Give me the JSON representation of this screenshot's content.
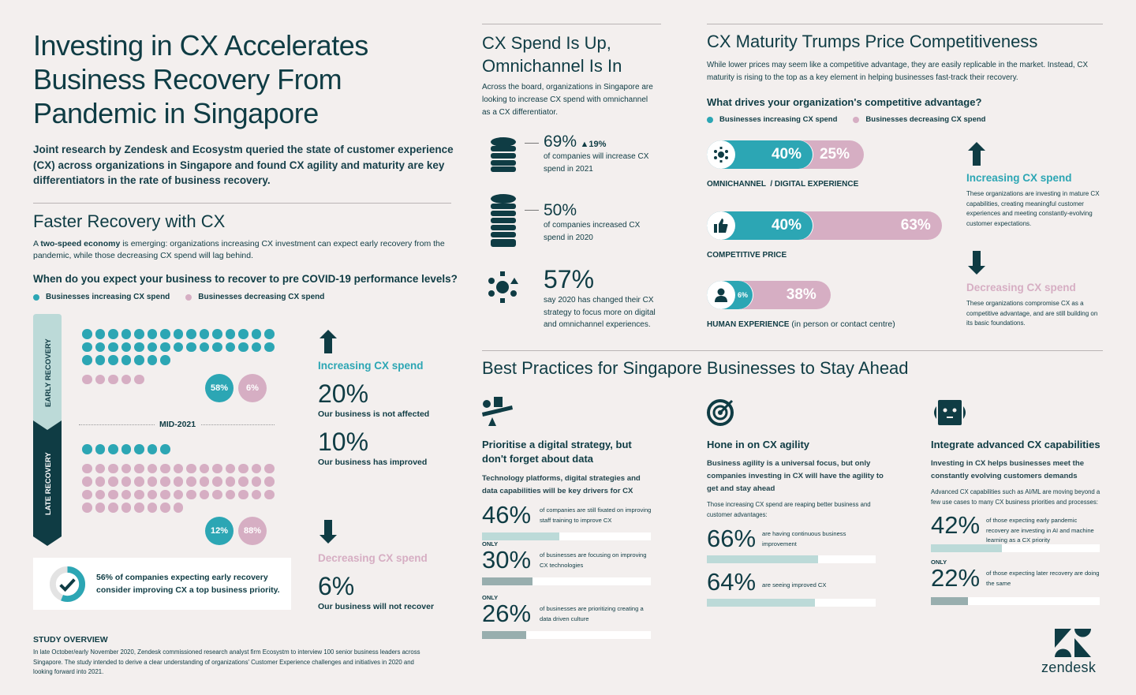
{
  "title": "Investing in CX Accelerates Business Recovery From Pandemic in Singapore",
  "intro": "Joint research by Zendesk and Ecosystm queried the state of customer experience (CX) across organizations in Singapore and found CX agility and maturity are key differentiators in the rate of business recovery.",
  "colors": {
    "dark": "#0f3c44",
    "teal": "#2ca6b4",
    "pink": "#d6aec3",
    "light": "#bcdad8",
    "grey": "#98aeae",
    "bg": "#f3efee"
  },
  "recovery": {
    "title": "Faster Recovery with CX",
    "para_bold": "two-speed economy",
    "para_pre": "A ",
    "para_post": " is emerging: organizations increasing CX investment can expect early recovery from the pandemic, while those decreasing CX spend will lag behind.",
    "question": "When do you expect your business to recover to pre COVID-19 performance levels?",
    "legend_inc": "Businesses increasing CX spend",
    "legend_dec": "Businesses decreasing CX spend",
    "early_label": "EARLY RECOVERY",
    "late_label": "LATE RECOVERY",
    "mid_label": "MID-2021",
    "early": {
      "teal_dots": 37,
      "pink_dots": 5,
      "teal_pct": "58%",
      "pink_pct": "6%"
    },
    "late": {
      "teal_dots": 7,
      "pink_dots": 53,
      "teal_pct": "12%",
      "pink_pct": "88%"
    },
    "callout": "56% of companies expecting early recovery consider improving CX a top business priority.",
    "callout_value": 0.56,
    "inc_title": "Increasing CX spend",
    "inc_stats": [
      {
        "pct": "20%",
        "text": "Our business is not affected"
      },
      {
        "pct": "10%",
        "text": "Our business has improved"
      }
    ],
    "dec_title": "Decreasing CX spend",
    "dec_stats": [
      {
        "pct": "6%",
        "text": "Our business will not recover"
      }
    ]
  },
  "study": {
    "title": "STUDY OVERVIEW",
    "text": "In late October/early November 2020, Zendesk commissioned research analyst firm Ecosystm to interview 100 senior business leaders across Singapore. The study intended to derive a clear understanding of organizations' Customer Experience challenges and initiatives in 2020 and looking forward into 2021."
  },
  "spend": {
    "title": "CX Spend Is Up, Omnichannel Is In",
    "para": "Across the board, organizations in Singapore are looking to increase CX spend with omnichannel as a CX differentiator.",
    "stats": [
      {
        "pct": "69%",
        "delta": "▲19%",
        "text": "of companies will increase CX spend in 2021",
        "icon": "coin-stack-icon"
      },
      {
        "pct": "50%",
        "text": "of companies increased CX spend in 2020",
        "icon": "tall-coin-stack-icon"
      },
      {
        "pct": "57%",
        "text": "say 2020 has changed their CX strategy to focus more on digital and omnichannel experiences.",
        "icon": "omnichannel-icon"
      }
    ]
  },
  "maturity": {
    "title": "CX Maturity Trumps Price Competitiveness",
    "para": "While lower prices may seem like a competitive advantage, they are easily replicable in the market. Instead, CX maturity is rising to the top as a key element in helping businesses fast-track their recovery.",
    "question": "What drives your organization's competitive advantage?",
    "legend_inc": "Businesses increasing CX spend",
    "legend_dec": "Businesses decreasing CX spend",
    "bars": [
      {
        "label": "OMNICHANNEL  / DIGITAL EXPERIENCE",
        "label_extra": "",
        "inc": 40,
        "dec": 25,
        "inc_label": "40%",
        "dec_label": "25%",
        "icon": "omnichannel-icon"
      },
      {
        "label": "COMPETITIVE PRICE",
        "label_extra": "",
        "inc": 40,
        "dec": 63,
        "inc_label": "40%",
        "dec_label": "63%",
        "icon": "thumbs-up-icon"
      },
      {
        "label": "HUMAN EXPERIENCE",
        "label_extra": " (in person or contact centre)",
        "inc": 6,
        "dec": 38,
        "inc_label": "6%",
        "dec_label": "38%",
        "icon": "person-icon"
      }
    ],
    "inc_title": "Increasing CX spend",
    "inc_text": "These organizations are investing in mature CX capabilities, creating meaningful customer experiences and meeting constantly-evolving customer expectations.",
    "dec_title": "Decreasing CX spend",
    "dec_text": "These organizations compromise CX as a competitive advantage, and are still building on its basic foundations."
  },
  "best": {
    "title": "Best Practices for Singapore Businesses to Stay Ahead",
    "cols": [
      {
        "title": "Prioritise a digital strategy, but don't forget about data",
        "sub": "Technology platforms, digital strategies and data capabilities will be key drivers for CX",
        "note": "",
        "stats": [
          {
            "only": "",
            "pct": "46%",
            "text": "of companies are still fixated on improving staff training to improve CX",
            "value": 0.46
          },
          {
            "only": "ONLY",
            "pct": "30%",
            "text": "of businesses are focusing on improving CX technologies",
            "value": 0.3
          },
          {
            "only": "ONLY",
            "pct": "26%",
            "text": "of businesses are prioritizing creating a data driven culture",
            "value": 0.26
          }
        ]
      },
      {
        "title": "Hone in on CX agility",
        "sub": "Business agility is a universal focus, but only companies investing in CX will have the agility to get and stay ahead",
        "note": "Those increasing CX spend are reaping better business and customer advantages:",
        "stats": [
          {
            "only": "",
            "pct": "66%",
            "text": "are having continuous business improvement",
            "value": 0.66
          },
          {
            "only": "",
            "pct": "64%",
            "text": "are seeing improved CX",
            "value": 0.64
          }
        ]
      },
      {
        "title": "Integrate advanced CX capabilities",
        "sub": "Investing in CX helps businesses meet the constantly evolving customers demands",
        "note": "Advanced CX capabilities such as AI/ML are moving beyond a few use cases to many CX business priorities and processes:",
        "stats": [
          {
            "only": "",
            "pct": "42%",
            "text": "of those expecting early pandemic recovery are investing in AI and machine learning as a CX priority",
            "value": 0.42
          },
          {
            "only": "ONLY",
            "pct": "22%",
            "text": "of those expecting later recovery are doing the same",
            "value": 0.22
          }
        ]
      }
    ]
  },
  "logo": "zendesk"
}
